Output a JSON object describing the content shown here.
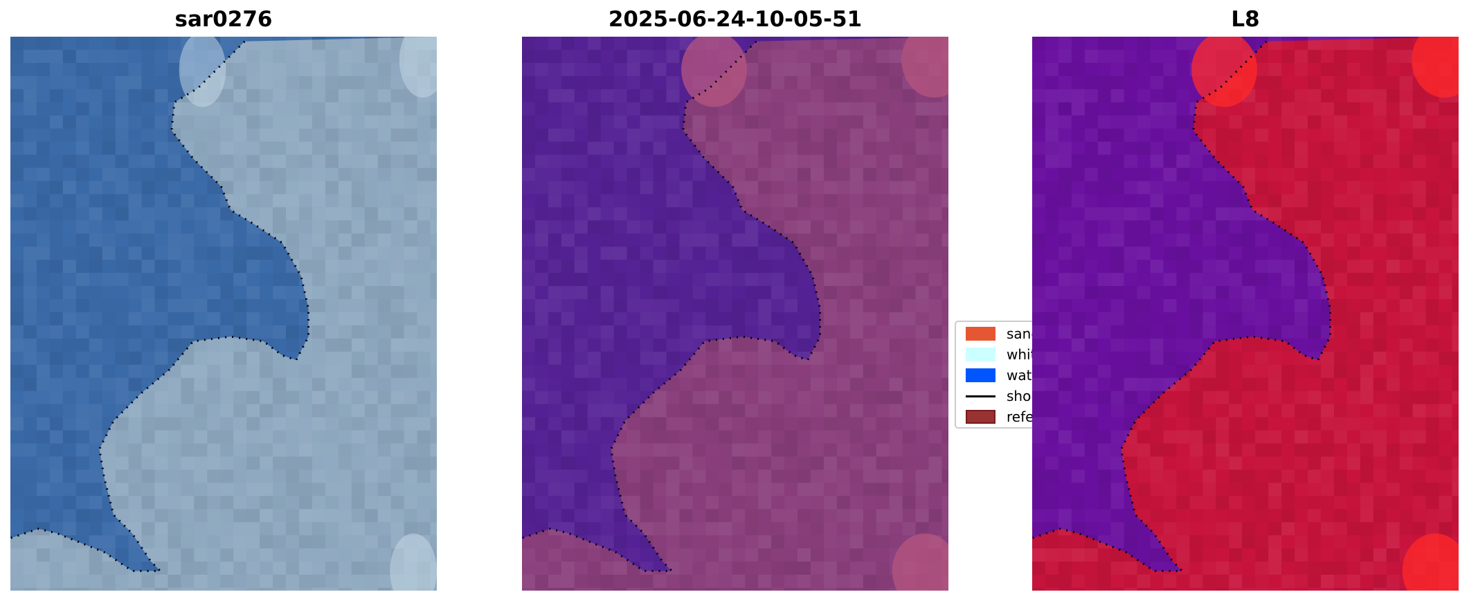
{
  "chart_data": [
    {
      "type": "image",
      "title": "sar0276",
      "content": "true-colour satellite image with dotted reference shoreline"
    },
    {
      "type": "image",
      "title": "2025-06-24-10-05-51",
      "content": "classified image with water overlay and dotted reference shoreline"
    },
    {
      "type": "image",
      "title": "L8",
      "content": "false-colour index image with dotted reference shoreline"
    }
  ],
  "legend": {
    "placement": "center (between panels 2 and 3)",
    "items": [
      {
        "label": "sand",
        "color": "#e55733",
        "kind": "patch"
      },
      {
        "label": "white-water",
        "color": "#ccffff",
        "kind": "patch"
      },
      {
        "label": "water",
        "color": "#0055ff",
        "kind": "patch"
      },
      {
        "label": "shoreline",
        "color": "#000000",
        "kind": "line"
      },
      {
        "label": "reference shoreline",
        "color": "#993333",
        "kind": "patch"
      }
    ]
  },
  "colors": {
    "panel1_water": "#3a6aa8",
    "panel1_land": "#8fa9c0",
    "panel2_water": "#552295",
    "panel2_land": "#8a3f7c",
    "panel3_water": "#6a10a0",
    "panel3_land": "#c8143c"
  }
}
